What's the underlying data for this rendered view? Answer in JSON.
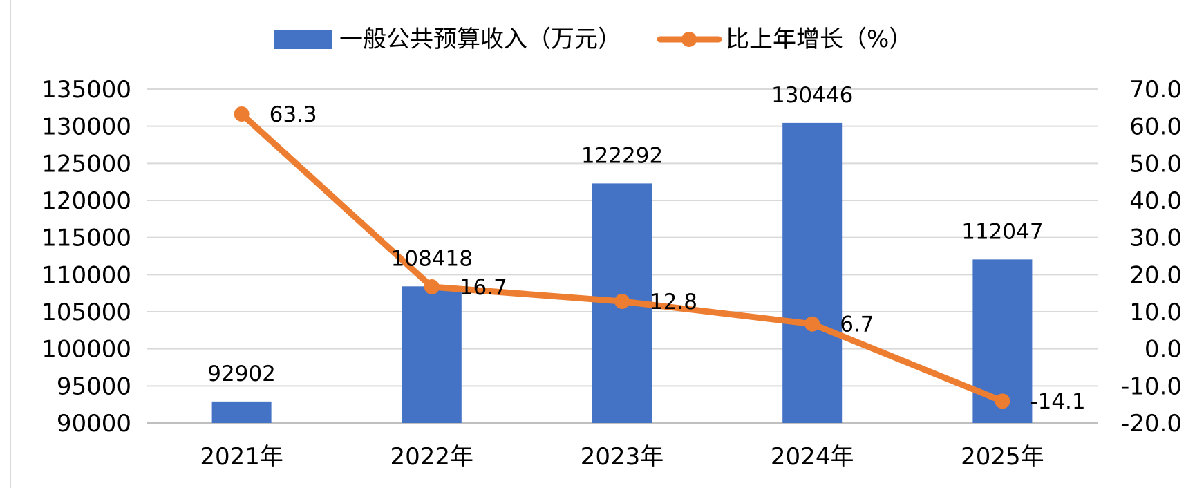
{
  "chart_data": {
    "type": "bar",
    "categories": [
      "2021年",
      "2022年",
      "2023年",
      "2024年",
      "2025年"
    ],
    "series": [
      {
        "name": "一般公共预算收入（万元）",
        "type": "bar",
        "axis": "left",
        "color": "#4472C4",
        "values": [
          92902,
          108418,
          122292,
          130446,
          112047
        ],
        "labels": [
          "92902",
          "108418",
          "122292",
          "130446",
          "112047"
        ]
      },
      {
        "name": "比上年增长（%）",
        "type": "line",
        "axis": "right",
        "color": "#ED7D31",
        "values": [
          63.3,
          16.7,
          12.8,
          6.7,
          -14.1
        ],
        "labels": [
          "63.3",
          "16.7",
          "12.8",
          "6.7",
          "-14.1"
        ]
      }
    ],
    "ylim_left": [
      90000,
      135000
    ],
    "ylim_right": [
      -20,
      70
    ],
    "yticks_left": [
      "90000",
      "95000",
      "100000",
      "105000",
      "110000",
      "115000",
      "120000",
      "125000",
      "130000",
      "135000"
    ],
    "yticks_right": [
      "-20.0",
      "-10.0",
      "0.0",
      "10.0",
      "20.0",
      "30.0",
      "40.0",
      "50.0",
      "60.0",
      "70.0"
    ],
    "grid": true,
    "legend_position": "top"
  }
}
